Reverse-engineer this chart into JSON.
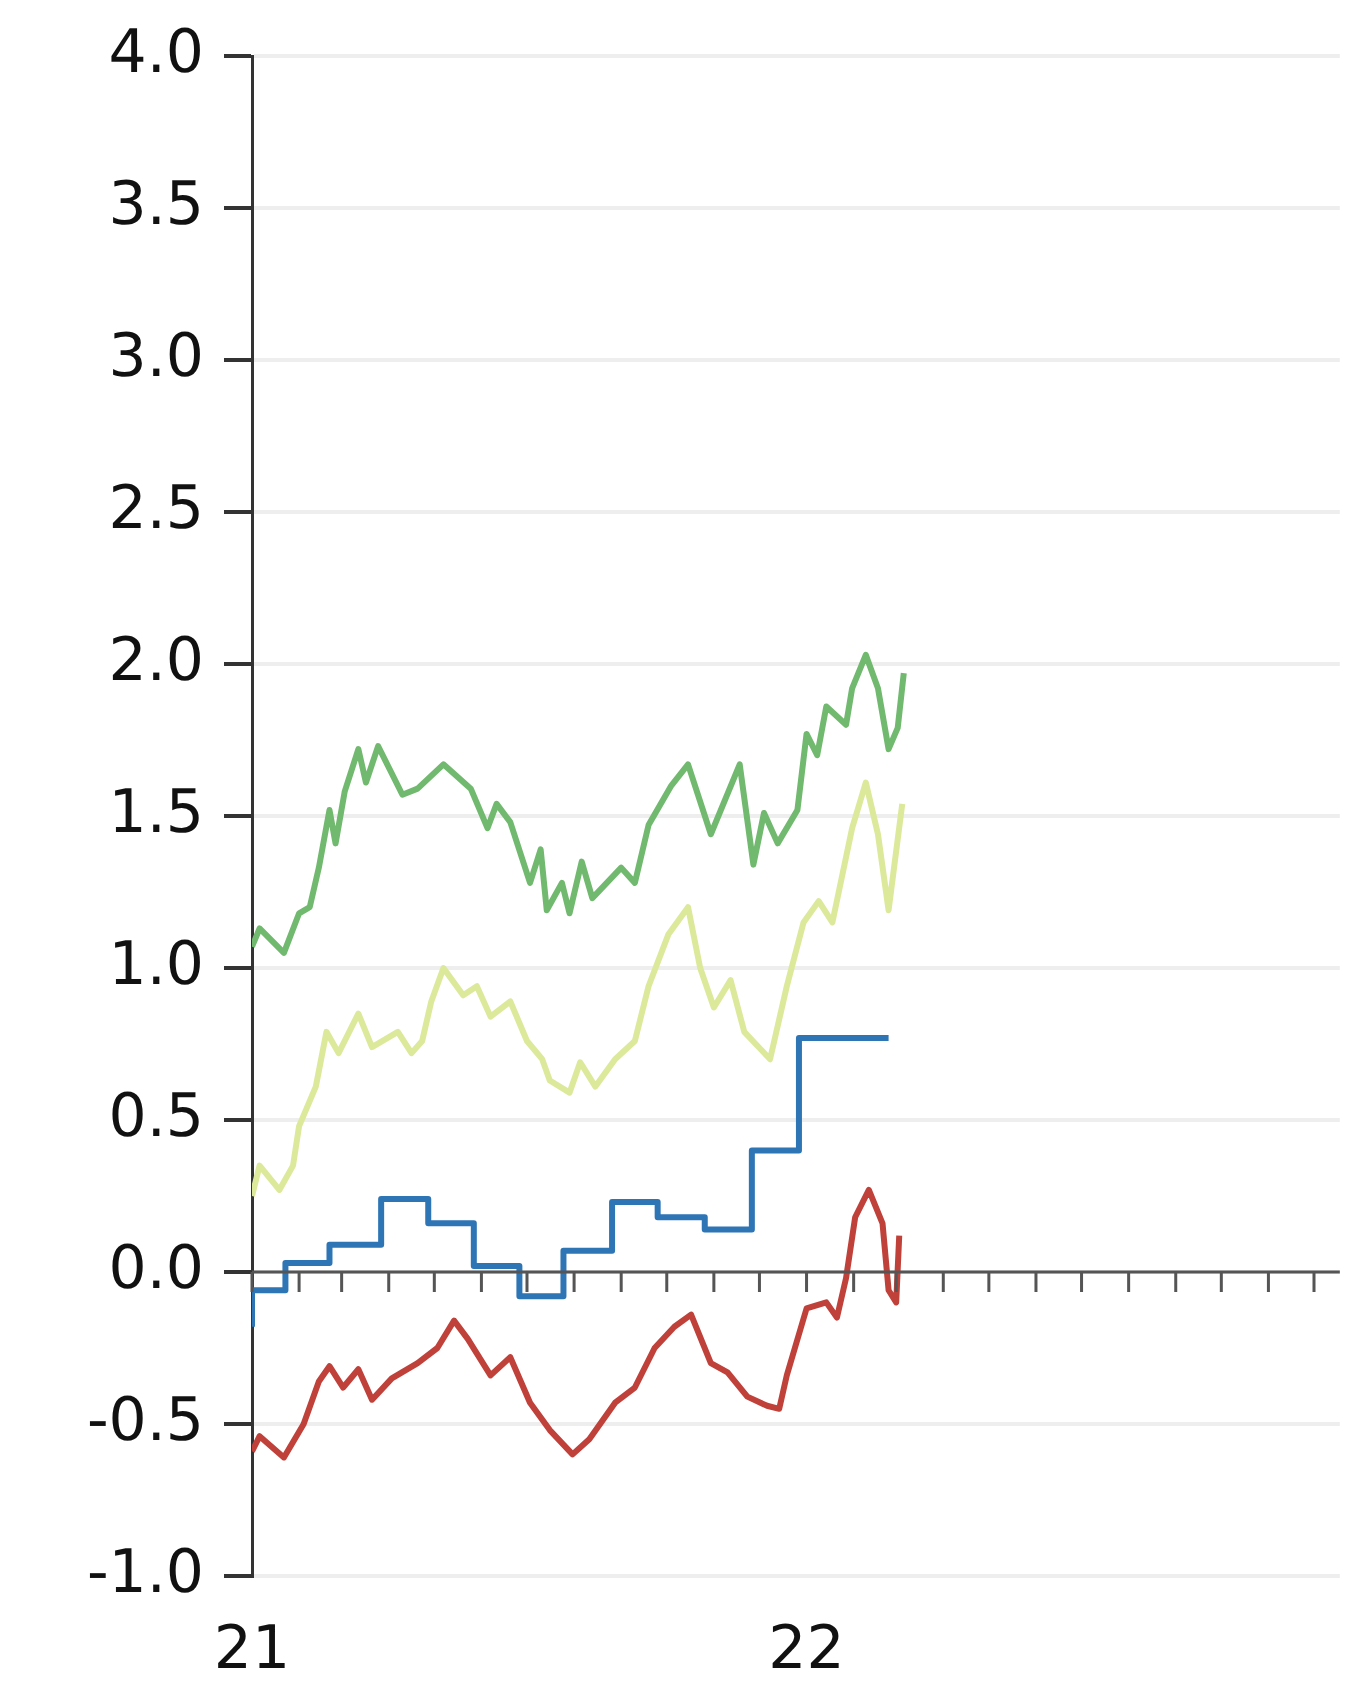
{
  "chart_data": {
    "type": "line",
    "xlim": [
      "2021-01-01",
      "2022-12-18"
    ],
    "xticks": [
      {
        "value": "2021-01",
        "label": "21"
      },
      {
        "value": "2021-02",
        "label": null
      },
      {
        "value": "2021-03",
        "label": null
      },
      {
        "value": "2021-04",
        "label": null
      },
      {
        "value": "2021-05",
        "label": null
      },
      {
        "value": "2021-06",
        "label": null
      },
      {
        "value": "2021-07",
        "label": null
      },
      {
        "value": "2021-08",
        "label": null
      },
      {
        "value": "2021-09",
        "label": null
      },
      {
        "value": "2021-10",
        "label": null
      },
      {
        "value": "2021-11",
        "label": null
      },
      {
        "value": "2021-12",
        "label": null
      },
      {
        "value": "2022-01",
        "label": "22"
      },
      {
        "value": "2022-02",
        "label": null
      },
      {
        "value": "2022-03",
        "label": null
      },
      {
        "value": "2022-04",
        "label": null
      },
      {
        "value": "2022-05",
        "label": null
      },
      {
        "value": "2022-06",
        "label": null
      },
      {
        "value": "2022-07",
        "label": null
      },
      {
        "value": "2022-08",
        "label": null
      },
      {
        "value": "2022-09",
        "label": null
      },
      {
        "value": "2022-10",
        "label": null
      },
      {
        "value": "2022-11",
        "label": null
      },
      {
        "value": "2022-12",
        "label": null
      }
    ],
    "ylim": [
      -1.0,
      4.0
    ],
    "yticks": [
      {
        "value": -1,
        "label": "-1.0"
      },
      {
        "value": -0.5,
        "label": "-0.5"
      },
      {
        "value": 0,
        "label": "0.0"
      },
      {
        "value": 0.5,
        "label": "0.5"
      },
      {
        "value": 1,
        "label": "1.0"
      },
      {
        "value": 1.5,
        "label": "1.5"
      },
      {
        "value": 2,
        "label": "2.0"
      },
      {
        "value": 2.5,
        "label": "2.5"
      },
      {
        "value": 3,
        "label": "3.0"
      },
      {
        "value": 3.5,
        "label": "3.5"
      },
      {
        "value": 4,
        "label": "4.0"
      }
    ],
    "grid": "y",
    "series": [
      {
        "type": "line",
        "color": "#71b96f",
        "x": [
          "2021-01-01",
          "2021-01-06",
          "2021-01-22",
          "2021-02-01",
          "2021-02-08",
          "2021-02-14",
          "2021-02-21",
          "2021-02-25",
          "2021-03-03",
          "2021-03-12",
          "2021-03-17",
          "2021-03-25",
          "2021-04-10",
          "2021-04-20",
          "2021-05-07",
          "2021-05-25",
          "2021-06-05",
          "2021-06-11",
          "2021-06-20",
          "2021-07-03",
          "2021-07-10",
          "2021-07-14",
          "2021-07-24",
          "2021-07-29",
          "2021-08-06",
          "2021-08-13",
          "2021-09-01",
          "2021-09-10",
          "2021-09-19",
          "2021-10-04",
          "2021-10-15",
          "2021-10-30",
          "2021-11-18",
          "2021-11-27",
          "2021-12-04",
          "2021-12-13",
          "2021-12-26",
          "2022-01-01",
          "2022-01-08",
          "2022-01-14",
          "2022-01-27",
          "2022-01-31",
          "2022-02-09",
          "2022-02-17",
          "2022-02-24",
          "2022-03-02",
          "2022-03-06"
        ],
        "values": [
          1.07,
          1.13,
          1.05,
          1.18,
          1.2,
          1.33,
          1.52,
          1.41,
          1.58,
          1.72,
          1.61,
          1.73,
          1.57,
          1.59,
          1.67,
          1.59,
          1.46,
          1.54,
          1.48,
          1.28,
          1.39,
          1.19,
          1.28,
          1.18,
          1.35,
          1.23,
          1.33,
          1.28,
          1.47,
          1.6,
          1.67,
          1.44,
          1.67,
          1.34,
          1.51,
          1.41,
          1.52,
          1.77,
          1.7,
          1.86,
          1.8,
          1.92,
          2.03,
          1.92,
          1.72,
          1.79,
          1.97
        ]
      },
      {
        "type": "line",
        "color": "#dce99b",
        "x": [
          "2021-01-01",
          "2021-01-06",
          "2021-01-19",
          "2021-01-28",
          "2021-02-01",
          "2021-02-12",
          "2021-02-19",
          "2021-02-27",
          "2021-03-12",
          "2021-03-21",
          "2021-04-07",
          "2021-04-16",
          "2021-04-23",
          "2021-04-29",
          "2021-05-07",
          "2021-05-20",
          "2021-05-29",
          "2021-06-07",
          "2021-06-20",
          "2021-07-01",
          "2021-07-11",
          "2021-07-16",
          "2021-07-29",
          "2021-08-05",
          "2021-08-15",
          "2021-08-28",
          "2021-09-10",
          "2021-09-19",
          "2021-10-02",
          "2021-10-15",
          "2021-10-23",
          "2021-11-01",
          "2021-11-12",
          "2021-11-21",
          "2021-12-08",
          "2021-12-19",
          "2021-12-30",
          "2022-01-09",
          "2022-01-18",
          "2022-01-31",
          "2022-02-09",
          "2022-02-17",
          "2022-02-24",
          "2022-03-05"
        ],
        "values": [
          0.25,
          0.35,
          0.27,
          0.35,
          0.48,
          0.61,
          0.79,
          0.72,
          0.85,
          0.74,
          0.79,
          0.72,
          0.76,
          0.89,
          1.0,
          0.91,
          0.94,
          0.84,
          0.89,
          0.76,
          0.7,
          0.63,
          0.59,
          0.69,
          0.61,
          0.7,
          0.76,
          0.94,
          1.11,
          1.2,
          1.0,
          0.87,
          0.96,
          0.79,
          0.7,
          0.94,
          1.15,
          1.22,
          1.15,
          1.46,
          1.61,
          1.44,
          1.19,
          1.54
        ]
      },
      {
        "type": "step",
        "color": "#2e75b6",
        "x": [
          "2021-01-01",
          "2021-01-23",
          "2021-02-21",
          "2021-03-27",
          "2021-04-27",
          "2021-05-27",
          "2021-06-26",
          "2021-07-25",
          "2021-08-26",
          "2021-09-25",
          "2021-10-26",
          "2021-11-26",
          "2021-12-27",
          "2022-01-26",
          "2022-02-24"
        ],
        "values": [
          -0.18,
          -0.06,
          0.03,
          0.09,
          0.24,
          0.16,
          0.02,
          -0.08,
          0.07,
          0.23,
          0.18,
          0.14,
          0.4,
          0.77,
          0.77
        ]
      },
      {
        "type": "line",
        "color": "#c0403a",
        "x": [
          "2021-01-01",
          "2021-01-06",
          "2021-01-22",
          "2021-02-04",
          "2021-02-14",
          "2021-02-21",
          "2021-03-02",
          "2021-03-12",
          "2021-03-21",
          "2021-04-03",
          "2021-04-20",
          "2021-05-03",
          "2021-05-14",
          "2021-05-23",
          "2021-06-07",
          "2021-06-20",
          "2021-07-03",
          "2021-07-16",
          "2021-07-31",
          "2021-08-11",
          "2021-08-28",
          "2021-09-10",
          "2021-09-23",
          "2021-10-06",
          "2021-10-17",
          "2021-10-30",
          "2021-11-10",
          "2021-11-23",
          "2021-12-06",
          "2021-12-14",
          "2021-12-19",
          "2022-01-01",
          "2022-01-14",
          "2022-01-21",
          "2022-01-27",
          "2022-02-02",
          "2022-02-11",
          "2022-02-20",
          "2022-02-24",
          "2022-03-01",
          "2022-03-03"
        ],
        "values": [
          -0.59,
          -0.54,
          -0.61,
          -0.5,
          -0.36,
          -0.31,
          -0.38,
          -0.32,
          -0.42,
          -0.35,
          -0.3,
          -0.25,
          -0.16,
          -0.22,
          -0.34,
          -0.28,
          -0.43,
          -0.52,
          -0.6,
          -0.55,
          -0.43,
          -0.38,
          -0.25,
          -0.18,
          -0.14,
          -0.3,
          -0.33,
          -0.41,
          -0.44,
          -0.45,
          -0.34,
          -0.12,
          -0.1,
          -0.15,
          -0.02,
          0.18,
          0.27,
          0.16,
          -0.06,
          -0.1,
          0.12
        ]
      }
    ]
  }
}
